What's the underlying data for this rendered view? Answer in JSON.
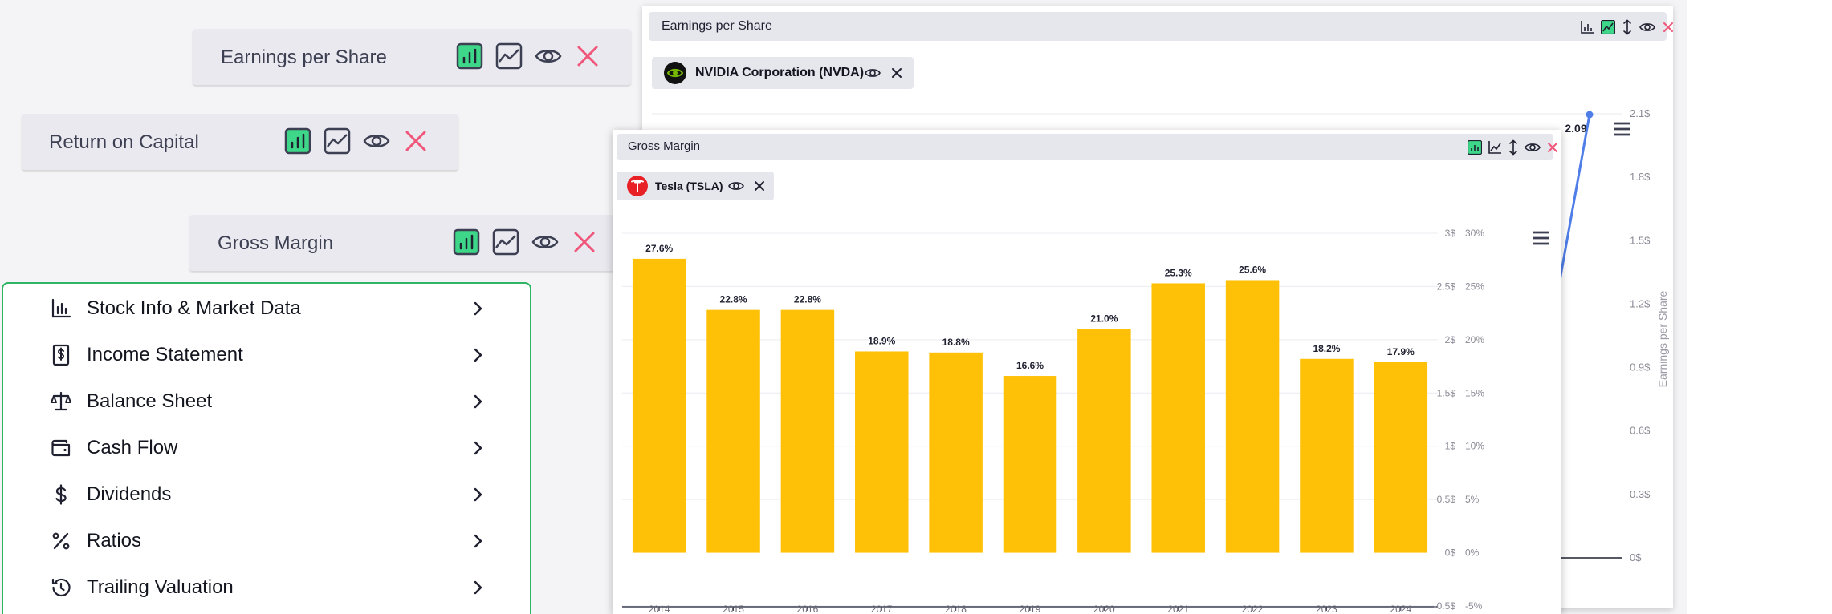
{
  "chips": [
    {
      "label": "Earnings per Share"
    },
    {
      "label": "Return on Capital"
    },
    {
      "label": "Gross Margin"
    }
  ],
  "menu": {
    "items": [
      {
        "label": "Stock Info & Market Data",
        "icon": "bar-chart-icon"
      },
      {
        "label": "Income Statement",
        "icon": "dollar-document-icon"
      },
      {
        "label": "Balance Sheet",
        "icon": "scales-icon"
      },
      {
        "label": "Cash Flow",
        "icon": "wallet-icon"
      },
      {
        "label": "Dividends",
        "icon": "dollar-icon"
      },
      {
        "label": "Ratios",
        "icon": "percent-icon"
      },
      {
        "label": "Trailing Valuation",
        "icon": "history-icon"
      }
    ]
  },
  "eps_panel": {
    "title": "Earnings per Share",
    "company": "NVIDIA Corporation (NVDA)",
    "colors": {
      "line": "#4f7ee8",
      "brand": "#76b900"
    },
    "axis": {
      "ylabel": "Earnings per Share",
      "ticks": [
        "2.1$",
        "1.8$",
        "1.5$",
        "1.2$",
        "0.9$",
        "0.6$",
        "0.3$",
        "0$"
      ]
    },
    "last_point_label": "2.09"
  },
  "gm_panel": {
    "title": "Gross Margin",
    "company": "Tesla (TSLA)",
    "colors": {
      "bar": "#ffc107",
      "brand": "#e82127"
    }
  },
  "chart_data": {
    "type": "bar",
    "title": "Gross Margin",
    "series_name": "Tesla (TSLA)",
    "categories": [
      "2014",
      "2015",
      "2016",
      "2017",
      "2018",
      "2019",
      "2020",
      "2021",
      "2022",
      "2023",
      "2024"
    ],
    "values": [
      27.6,
      22.8,
      22.8,
      18.9,
      18.8,
      16.6,
      21.0,
      25.3,
      25.6,
      18.2,
      17.9
    ],
    "value_labels": [
      "27.6%",
      "22.8%",
      "22.8%",
      "18.9%",
      "18.8%",
      "16.6%",
      "21.0%",
      "25.3%",
      "25.6%",
      "18.2%",
      "17.9%"
    ],
    "ylim": [
      -5,
      30
    ],
    "y_ticks_percent": [
      "30%",
      "25%",
      "20%",
      "15%",
      "10%",
      "5%",
      "0%",
      "-5%"
    ],
    "y_ticks_dollar": [
      "3$",
      "2.5$",
      "2$",
      "1.5$",
      "1$",
      "0.5$",
      "0$",
      "-0.5$"
    ],
    "xlabel": "",
    "ylabel": ""
  }
}
